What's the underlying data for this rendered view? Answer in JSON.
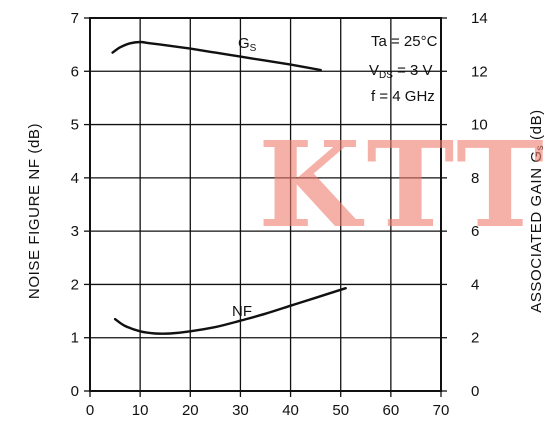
{
  "chart_data": {
    "type": "line",
    "title": "",
    "x": {
      "ticks": [
        0,
        10,
        20,
        30,
        40,
        50,
        60,
        70
      ],
      "lim": [
        0,
        70
      ],
      "label": ""
    },
    "y_left": {
      "label": "NOISE FIGURE NF (dB)",
      "ticks": [
        0,
        1,
        2,
        3,
        4,
        5,
        6,
        7
      ],
      "lim": [
        0,
        7
      ]
    },
    "y_right": {
      "label_main": "ASSOCIATED GAIN G",
      "label_sub": "s",
      "label_unit": " (dB)",
      "ticks": [
        0,
        2,
        4,
        6,
        8,
        10,
        12,
        14
      ],
      "lim": [
        0,
        14
      ]
    },
    "grid": true,
    "series": [
      {
        "name": "NF",
        "axis": "left",
        "x": [
          5,
          7,
          10,
          13,
          16,
          20,
          25,
          30,
          35,
          40,
          45,
          51
        ],
        "y": [
          1.35,
          1.22,
          1.12,
          1.08,
          1.08,
          1.12,
          1.2,
          1.32,
          1.45,
          1.6,
          1.75,
          1.93
        ]
      },
      {
        "name": "Gs",
        "axis": "right",
        "x": [
          4.5,
          6,
          8,
          10,
          12,
          15,
          20,
          25,
          30,
          35,
          40,
          46
        ],
        "y": [
          12.7,
          12.9,
          13.05,
          13.1,
          13.05,
          12.98,
          12.85,
          12.7,
          12.55,
          12.4,
          12.25,
          12.05
        ]
      }
    ],
    "series_labels": {
      "gs_main": "G",
      "gs_sub": "S",
      "nf": "NF"
    },
    "conditions": {
      "ta": "Ta = 25°C",
      "vds_main": "V",
      "vds_sub": "DS",
      "vds_rest": " = 3 V",
      "freq": "f = 4 GHz"
    }
  },
  "watermark": {
    "text": "KTT",
    "color": "#ef7d6d"
  }
}
